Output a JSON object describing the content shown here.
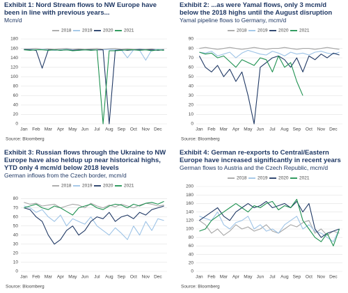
{
  "chart_data": [
    {
      "type": "line",
      "title": "Exhibit 1: Nord Stream flows to NW Europe have been in line with previous years...",
      "subtitle": "Mcm/d",
      "source": "Source: Bloomberg",
      "categories": [
        "Jan",
        null,
        "Feb",
        null,
        "Mar",
        null,
        "Apr",
        null,
        "May",
        null,
        "Jun",
        null,
        "Jul",
        null,
        "Aug",
        null,
        "Sep",
        null,
        "Oct",
        null,
        "Nov",
        null,
        "Dec",
        null
      ],
      "ylim": [
        0,
        180
      ],
      "yticks": [
        0,
        20,
        40,
        60,
        80,
        100,
        120,
        140,
        160,
        180
      ],
      "grid": true,
      "series": [
        {
          "name": "2018",
          "color": "#a6a6a6",
          "values": [
            158,
            159,
            160,
            158,
            159,
            158,
            159,
            160,
            158,
            159,
            158,
            159,
            160,
            158,
            159,
            160,
            158,
            159,
            158,
            157,
            158,
            159,
            157,
            158
          ]
        },
        {
          "name": "2019",
          "color": "#9dc3e6",
          "values": [
            157,
            158,
            157,
            158,
            157,
            156,
            157,
            158,
            157,
            156,
            157,
            157,
            157,
            157,
            158,
            157,
            157,
            140,
            157,
            156,
            135,
            157,
            158,
            157
          ]
        },
        {
          "name": "2020",
          "color": "#1f3864",
          "values": [
            158,
            157,
            156,
            118,
            157,
            157,
            156,
            157,
            156,
            157,
            157,
            157,
            157,
            157,
            0,
            156,
            157,
            156,
            157,
            158,
            157,
            157,
            156,
            157
          ]
        },
        {
          "name": "2021",
          "color": "#1e9150",
          "values": [
            157,
            156,
            157,
            157,
            156,
            157,
            156,
            157,
            155,
            156,
            157,
            156,
            157,
            0,
            155,
            155,
            156,
            157,
            157,
            156,
            157,
            155,
            157,
            156
          ]
        }
      ]
    },
    {
      "type": "line",
      "title": "Exhibit 2: ...as were Yamal flows, only 3 mcm/d below the 2018 highs until the August disruption",
      "subtitle": "Yamal pipeline flows to Germany, mcm/d",
      "source": "Source: Bloomberg",
      "categories": [
        "Jan",
        null,
        "Feb",
        null,
        "Mar",
        null,
        "Apr",
        null,
        "May",
        null,
        "Jun",
        null,
        "Jul",
        null,
        "Aug",
        null,
        "Sep",
        null,
        "Oct",
        null,
        "Nov",
        null,
        "Dec",
        null
      ],
      "ylim": [
        0,
        90
      ],
      "yticks": [
        0,
        10,
        20,
        30,
        40,
        50,
        60,
        70,
        80,
        90
      ],
      "grid": true,
      "series": [
        {
          "name": "2018",
          "color": "#a6a6a6",
          "values": [
            80,
            81,
            80,
            79,
            80,
            81,
            80,
            79,
            80,
            81,
            80,
            79,
            80,
            80,
            81,
            80,
            79,
            80,
            80,
            79,
            80,
            81,
            80,
            79
          ]
        },
        {
          "name": "2019",
          "color": "#9dc3e6",
          "values": [
            76,
            75,
            77,
            72,
            74,
            76,
            70,
            75,
            78,
            76,
            74,
            73,
            77,
            75,
            72,
            76,
            74,
            75,
            73,
            76,
            77,
            75,
            74,
            76
          ]
        },
        {
          "name": "2020",
          "color": "#1f3864",
          "values": [
            72,
            60,
            55,
            62,
            50,
            58,
            45,
            55,
            30,
            0,
            60,
            65,
            70,
            72,
            68,
            60,
            70,
            55,
            72,
            68,
            74,
            70,
            75,
            73
          ]
        },
        {
          "name": "2021",
          "color": "#1e9150",
          "values": [
            76,
            74,
            75,
            70,
            72,
            66,
            60,
            68,
            65,
            62,
            70,
            68,
            55,
            72,
            60,
            65,
            45,
            30,
            null,
            null,
            null,
            null,
            null,
            null
          ]
        }
      ]
    },
    {
      "type": "line",
      "title": "Exhibit 3: Russian flows through the Ukraine to NW Europe have also heldup up near historical highs, YTD only 4 mcm/d below 2018 levels",
      "subtitle": "German inflows from the Czech border, mcm/d",
      "source": "Source: Bloomberg",
      "categories": [
        "Jan",
        null,
        "Feb",
        null,
        "Mar",
        null,
        "Apr",
        null,
        "May",
        null,
        "Jun",
        null,
        "Jul",
        null,
        "Aug",
        null,
        "Sep",
        null,
        "Oct",
        null,
        "Nov",
        null,
        "Dec",
        null
      ],
      "ylim": [
        0,
        85
      ],
      "yticks": [
        0,
        10,
        20,
        30,
        40,
        50,
        60,
        70,
        80
      ],
      "grid": true,
      "series": [
        {
          "name": "2018",
          "color": "#a6a6a6",
          "values": [
            76,
            74,
            75,
            72,
            73,
            74,
            70,
            72,
            74,
            73,
            70,
            75,
            72,
            70,
            73,
            71,
            74,
            72,
            70,
            73,
            75,
            74,
            72,
            73
          ]
        },
        {
          "name": "2019",
          "color": "#9dc3e6",
          "values": [
            72,
            70,
            65,
            68,
            60,
            55,
            62,
            50,
            58,
            55,
            52,
            60,
            50,
            45,
            40,
            48,
            42,
            35,
            50,
            40,
            55,
            45,
            58,
            56
          ]
        },
        {
          "name": "2020",
          "color": "#1f3864",
          "values": [
            70,
            68,
            60,
            55,
            40,
            30,
            35,
            45,
            50,
            40,
            45,
            55,
            60,
            58,
            65,
            55,
            60,
            62,
            58,
            65,
            62,
            68,
            70,
            72
          ]
        },
        {
          "name": "2021",
          "color": "#1e9150",
          "values": [
            70,
            72,
            74,
            70,
            68,
            72,
            70,
            66,
            62,
            70,
            72,
            74,
            70,
            68,
            72,
            74,
            73,
            70,
            74,
            72,
            75,
            76,
            74,
            77
          ]
        }
      ]
    },
    {
      "type": "line",
      "title": "Exhibit 4: German re-exports to Central/Eastern Europe have increased significantly in recent years",
      "subtitle": "German flows to Austria and the Czech Republic, mcm/d",
      "source": "Source: Bloomberg",
      "categories": [
        "Jan",
        null,
        "Feb",
        null,
        "Mar",
        null,
        "Apr",
        null,
        "May",
        null,
        "Jun",
        null,
        "Jul",
        null,
        "Aug",
        null,
        "Sep",
        null,
        "Oct",
        null,
        "Nov",
        null,
        "Dec",
        null
      ],
      "ylim": [
        0,
        200
      ],
      "yticks": [
        0,
        20,
        40,
        60,
        80,
        100,
        120,
        140,
        160,
        180,
        200
      ],
      "grid": true,
      "series": [
        {
          "name": "2018",
          "color": "#a6a6a6",
          "values": [
            120,
            110,
            90,
            100,
            85,
            95,
            110,
            100,
            105,
            95,
            100,
            110,
            95,
            90,
            100,
            110,
            105,
            115,
            120,
            90,
            100,
            85,
            95,
            90
          ]
        },
        {
          "name": "2019",
          "color": "#9dc3e6",
          "values": [
            130,
            125,
            120,
            140,
            110,
            100,
            115,
            120,
            130,
            100,
            110,
            95,
            100,
            90,
            110,
            120,
            130,
            100,
            110,
            95,
            90,
            80,
            70,
            100
          ]
        },
        {
          "name": "2020",
          "color": "#1f3864",
          "values": [
            120,
            130,
            140,
            150,
            130,
            120,
            140,
            150,
            160,
            150,
            155,
            165,
            150,
            155,
            160,
            150,
            165,
            140,
            160,
            100,
            80,
            90,
            95,
            100
          ]
        },
        {
          "name": "2021",
          "color": "#1e9150",
          "values": [
            95,
            100,
            120,
            130,
            140,
            150,
            160,
            150,
            140,
            155,
            150,
            160,
            165,
            145,
            155,
            150,
            170,
            120,
            100,
            80,
            70,
            90,
            60,
            100
          ]
        }
      ]
    }
  ]
}
